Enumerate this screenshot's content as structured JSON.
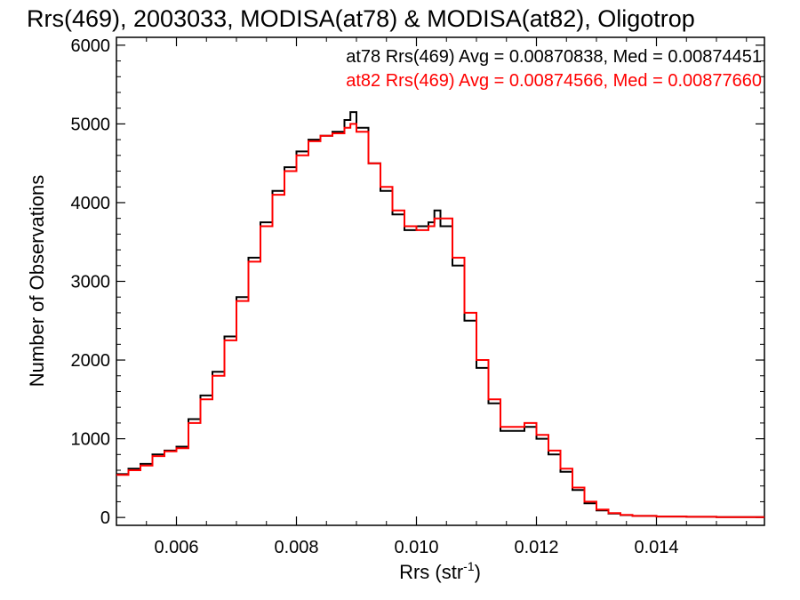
{
  "chart_data": {
    "type": "line",
    "title": "Rrs(469), 2003033, MODISA(at78) & MODISA(at82), Oligotrop",
    "xlabel": "Rrs (str",
    "xlabel_sup": "-1",
    "xlabel_close": ")",
    "ylabel": "Number of Observations",
    "xlim": [
      0.005,
      0.0158
    ],
    "ylim": [
      -100,
      6100
    ],
    "x_ticks": [
      0.006,
      0.008,
      0.01,
      0.012,
      0.014
    ],
    "x_tick_labels": [
      "0.006",
      "0.008",
      "0.010",
      "0.012",
      "0.014"
    ],
    "y_ticks": [
      0,
      1000,
      2000,
      3000,
      4000,
      5000,
      6000
    ],
    "y_tick_labels": [
      "0",
      "1000",
      "2000",
      "3000",
      "4000",
      "5000",
      "6000"
    ],
    "grid": false,
    "legend_position": "top-right",
    "step": true,
    "series": [
      {
        "name": "at78 Rrs(469) Avg = 0.00870838, Med = 0.00874451",
        "color": "#000000",
        "x": [
          0.005,
          0.0052,
          0.0054,
          0.0056,
          0.0058,
          0.006,
          0.0062,
          0.0064,
          0.0066,
          0.0068,
          0.007,
          0.0072,
          0.0074,
          0.0076,
          0.0078,
          0.008,
          0.0082,
          0.0084,
          0.0086,
          0.0088,
          0.0089,
          0.009,
          0.0092,
          0.0094,
          0.0096,
          0.0098,
          0.01,
          0.0102,
          0.0103,
          0.0104,
          0.0106,
          0.0108,
          0.011,
          0.0112,
          0.0114,
          0.0116,
          0.0118,
          0.012,
          0.0122,
          0.0124,
          0.0126,
          0.0128,
          0.013,
          0.0132,
          0.0134,
          0.0136,
          0.014,
          0.0145,
          0.015,
          0.0158
        ],
        "y": [
          550,
          620,
          680,
          800,
          850,
          900,
          1250,
          1550,
          1850,
          2300,
          2800,
          3300,
          3750,
          4150,
          4450,
          4650,
          4800,
          4850,
          4900,
          5050,
          5150,
          4950,
          4500,
          4150,
          3850,
          3650,
          3700,
          3750,
          3900,
          3700,
          3200,
          2500,
          1900,
          1450,
          1100,
          1100,
          1150,
          1000,
          800,
          580,
          350,
          180,
          90,
          50,
          30,
          20,
          12,
          8,
          5,
          3
        ]
      },
      {
        "name": "at82 Rrs(469) Avg = 0.00874566, Med = 0.00877660",
        "color": "#ff0000",
        "x": [
          0.005,
          0.0052,
          0.0054,
          0.0056,
          0.0058,
          0.006,
          0.0062,
          0.0064,
          0.0066,
          0.0068,
          0.007,
          0.0072,
          0.0074,
          0.0076,
          0.0078,
          0.008,
          0.0082,
          0.0084,
          0.0086,
          0.0088,
          0.0089,
          0.009,
          0.0092,
          0.0094,
          0.0096,
          0.0098,
          0.01,
          0.0102,
          0.0103,
          0.0104,
          0.0106,
          0.0108,
          0.011,
          0.0112,
          0.0114,
          0.0116,
          0.0118,
          0.012,
          0.0122,
          0.0124,
          0.0126,
          0.0128,
          0.013,
          0.0132,
          0.0134,
          0.0136,
          0.014,
          0.0145,
          0.015,
          0.0158
        ],
        "y": [
          540,
          600,
          660,
          780,
          840,
          880,
          1200,
          1500,
          1800,
          2250,
          2750,
          3250,
          3700,
          4100,
          4400,
          4600,
          4780,
          4850,
          4880,
          4950,
          5000,
          4900,
          4500,
          4200,
          3900,
          3700,
          3650,
          3700,
          3800,
          3800,
          3300,
          2600,
          2000,
          1500,
          1150,
          1150,
          1200,
          1050,
          850,
          620,
          380,
          200,
          100,
          55,
          32,
          20,
          12,
          8,
          5,
          3
        ]
      }
    ]
  }
}
